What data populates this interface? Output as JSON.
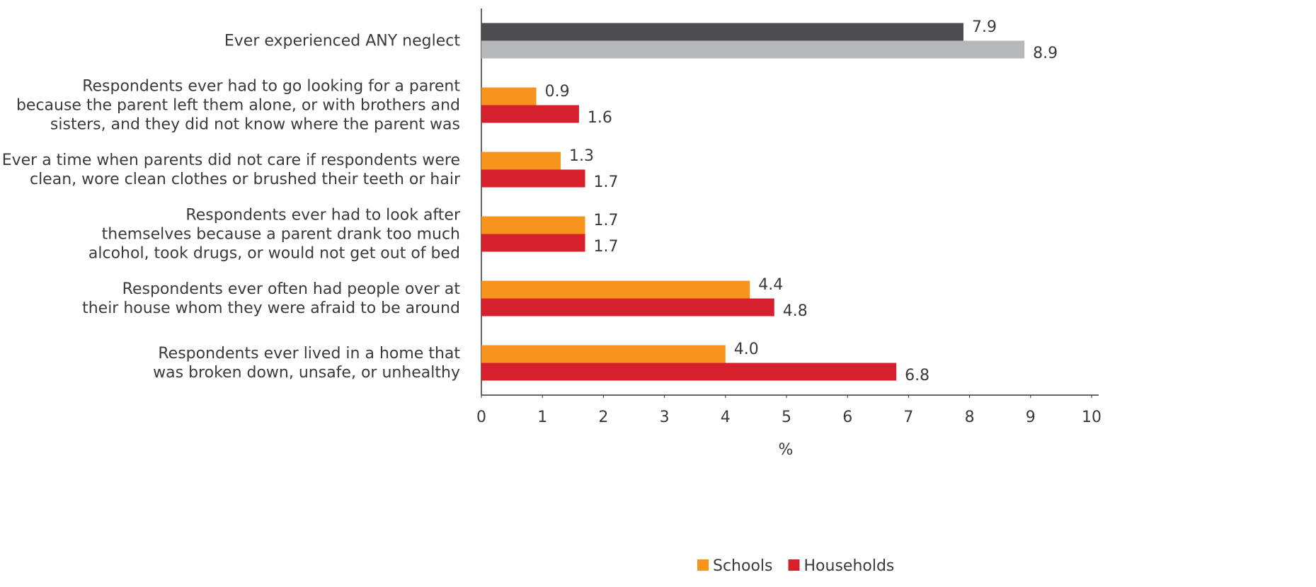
{
  "chart_data": {
    "type": "bar",
    "orientation": "horizontal",
    "categories": [
      "Ever experienced ANY neglect",
      "Respondents ever had to go looking for a parent\nbecause the parent left them alone, or with brothers and\nsisters, and they did not know where the parent was",
      "Ever a time when parents did not care if respondents were\nclean, wore clean clothes or brushed their teeth or hair",
      "Respondents ever had to look after\nthemselves because a parent drank too much\nalcohol, took drugs, or would not get out of bed",
      "Respondents ever often had people over at\ntheir house whom they were afraid to be around",
      "Respondents ever lived in a home that\nwas broken down, unsafe, or unhealthy"
    ],
    "series": [
      {
        "name": "Schools",
        "color": "#f7941d",
        "values": [
          7.9,
          0.9,
          1.3,
          1.7,
          4.4,
          4.0
        ],
        "value_labels": [
          "7.9",
          "0.9",
          "1.3",
          "1.7",
          "4.4",
          "4.0"
        ],
        "colors": [
          "#4d4d4f",
          "#f7941d",
          "#f7941d",
          "#f7941d",
          "#f7941d",
          "#f7941d"
        ]
      },
      {
        "name": "Households",
        "color": "#d7202e",
        "values": [
          8.9,
          1.6,
          1.7,
          1.7,
          4.8,
          6.8
        ],
        "value_labels": [
          "8.9",
          "1.6",
          "1.7",
          "1.7",
          "4.8",
          "6.8"
        ],
        "colors": [
          "#b7b8ba",
          "#d7202e",
          "#d7202e",
          "#d7202e",
          "#d7202e",
          "#d7202e"
        ]
      }
    ],
    "xlabel": "%",
    "xlim": [
      0,
      10
    ],
    "xticks": [
      0,
      1,
      2,
      3,
      4,
      5,
      6,
      7,
      8,
      9,
      10
    ],
    "grid": false,
    "legend": "bottom"
  }
}
